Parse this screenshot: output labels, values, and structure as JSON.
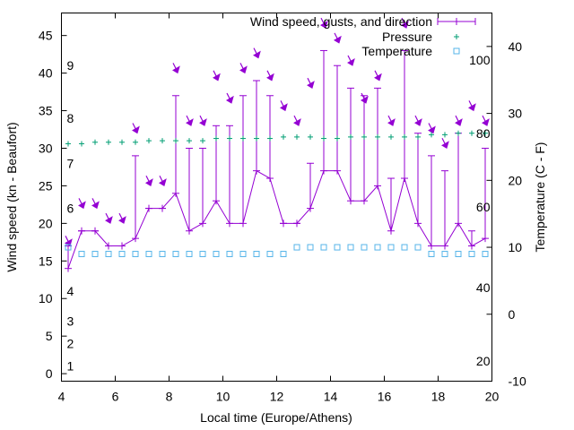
{
  "chart_data": {
    "type": "line",
    "xlabel": "Local time (Europe/Athens)",
    "ylabel_left": "Wind speed (kn - Beaufort)",
    "ylabel_right": "Temperature (C - F)",
    "x_range": [
      4,
      20
    ],
    "y_left_range": [
      -1,
      48
    ],
    "y_right_range": [
      -10,
      45
    ],
    "x_ticks": [
      4,
      6,
      8,
      10,
      12,
      14,
      16,
      18,
      20
    ],
    "y_left_ticks": [
      0,
      5,
      10,
      15,
      20,
      25,
      30,
      35,
      40,
      45
    ],
    "y_right_ticks": [
      -10,
      0,
      10,
      20,
      30,
      40
    ],
    "beaufort_labels": [
      {
        "label": "1",
        "y": 1
      },
      {
        "label": "2",
        "y": 4
      },
      {
        "label": "3",
        "y": 7
      },
      {
        "label": "4",
        "y": 11
      },
      {
        "label": "6",
        "y": 22
      },
      {
        "label": "7",
        "y": 28
      },
      {
        "label": "8",
        "y": 34
      },
      {
        "label": "9",
        "y": 41
      }
    ],
    "fahrenheit_labels": [
      {
        "label": "20",
        "t": -7
      },
      {
        "label": "40",
        "t": 4
      },
      {
        "label": "60",
        "t": 16
      },
      {
        "label": "80",
        "t": 27
      },
      {
        "label": "100",
        "t": 38
      }
    ],
    "legend": [
      "Wind speed, gusts, and direction",
      "Pressure",
      "Temperature"
    ],
    "legend_position": "top-right",
    "colors": {
      "wind": "#9400d3",
      "pressure": "#009e73",
      "temperature": "#56b4e9"
    },
    "series": [
      {
        "name": "Wind speed, gusts, and direction",
        "x": [
          4.25,
          4.75,
          5.25,
          5.75,
          6.25,
          6.75,
          7.25,
          7.75,
          8.25,
          8.75,
          9.25,
          9.75,
          10.25,
          10.75,
          11.25,
          11.75,
          12.25,
          12.75,
          13.25,
          13.75,
          14.25,
          14.75,
          15.25,
          15.75,
          16.25,
          16.75,
          17.25,
          17.75,
          18.25,
          18.75,
          19.25,
          19.75
        ],
        "speed": [
          14,
          19,
          19,
          17,
          17,
          18,
          22,
          22,
          24,
          19,
          20,
          23,
          20,
          20,
          27,
          26,
          20,
          20,
          22,
          27,
          27,
          23,
          23,
          25,
          19,
          26,
          20,
          17,
          17,
          20,
          17,
          18
        ],
        "gust": [
          17,
          19,
          19,
          17,
          17,
          29,
          22,
          22,
          37,
          30,
          30,
          33,
          33,
          37,
          39,
          37,
          20,
          20,
          28,
          43,
          41,
          38,
          37,
          38,
          26,
          43,
          32,
          29,
          27,
          32,
          19,
          30
        ],
        "direction_arrow_y": [
          17.5,
          22.5,
          22.5,
          20.5,
          20.5,
          32.5,
          25.5,
          25.5,
          40.5,
          33.5,
          33.5,
          39.5,
          36.5,
          40.5,
          42.5,
          39.5,
          35.5,
          33.5,
          38.5,
          46.5,
          44.5,
          41.5,
          36.5,
          39.5,
          33.5,
          46.5,
          33.5,
          32.5,
          30.5,
          33.5,
          35.5,
          33.5
        ]
      },
      {
        "name": "Pressure",
        "x": [
          4.25,
          4.75,
          5.25,
          5.75,
          6.25,
          6.75,
          7.25,
          7.75,
          8.25,
          8.75,
          9.25,
          9.75,
          10.25,
          10.75,
          11.25,
          11.75,
          12.25,
          12.75,
          13.25,
          13.75,
          14.25,
          14.75,
          15.25,
          15.75,
          16.25,
          16.75,
          17.25,
          17.75,
          18.25,
          18.75,
          19.25,
          19.75
        ],
        "values": [
          30.6,
          30.6,
          30.8,
          30.8,
          30.8,
          30.8,
          31.0,
          31.0,
          31.0,
          31.0,
          31.0,
          31.3,
          31.3,
          31.3,
          31.3,
          31.3,
          31.5,
          31.5,
          31.5,
          31.3,
          31.3,
          31.5,
          31.5,
          31.5,
          31.5,
          31.5,
          31.5,
          31.8,
          31.8,
          32.0,
          32.0,
          32.0
        ]
      },
      {
        "name": "Temperature",
        "x": [
          4.25,
          4.75,
          5.25,
          5.75,
          6.25,
          6.75,
          7.25,
          7.75,
          8.25,
          8.75,
          9.25,
          9.75,
          10.25,
          10.75,
          11.25,
          11.75,
          12.25,
          12.75,
          13.25,
          13.75,
          14.25,
          14.75,
          15.25,
          15.75,
          16.25,
          16.75,
          17.25,
          17.75,
          18.25,
          18.75,
          19.25,
          19.75
        ],
        "values": [
          10,
          9,
          9,
          9,
          9,
          9,
          9,
          9,
          9,
          9,
          9,
          9,
          9,
          9,
          9,
          9,
          9,
          10,
          10,
          10,
          10,
          10,
          10,
          10,
          10,
          10,
          10,
          9,
          9,
          9,
          9,
          9
        ]
      }
    ]
  }
}
